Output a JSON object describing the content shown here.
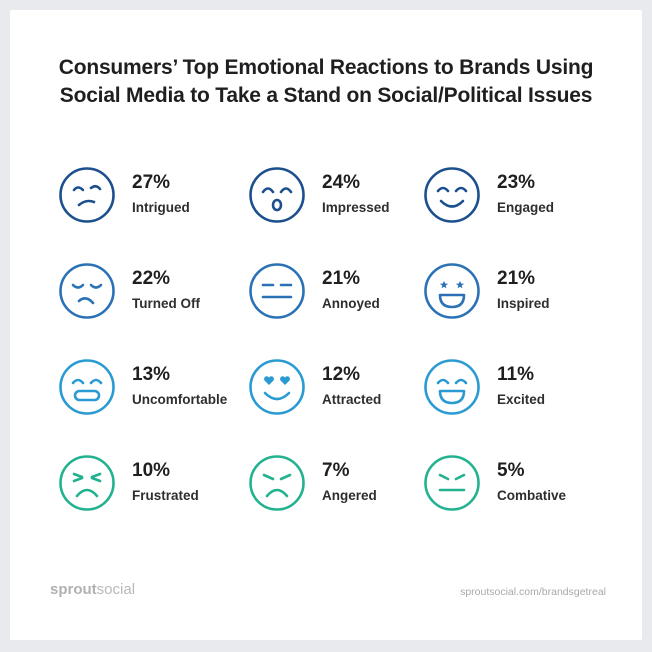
{
  "title": {
    "line1": "Consumers’ Top Emotional Reactions to Brands Using",
    "line2": "Social Media to Take a Stand on Social/Political Issues"
  },
  "colors": {
    "row1": "#1b4f8e",
    "row2": "#2a72b5",
    "row3": "#2a9bd2",
    "row4": "#22b28f"
  },
  "reactions": [
    {
      "percent": "27%",
      "label": "Intrigued",
      "icon": "intrigued-face-icon"
    },
    {
      "percent": "24%",
      "label": "Impressed",
      "icon": "impressed-face-icon"
    },
    {
      "percent": "23%",
      "label": "Engaged",
      "icon": "engaged-face-icon"
    },
    {
      "percent": "22%",
      "label": "Turned Off",
      "icon": "turned-off-face-icon"
    },
    {
      "percent": "21%",
      "label": "Annoyed",
      "icon": "annoyed-face-icon"
    },
    {
      "percent": "21%",
      "label": "Inspired",
      "icon": "inspired-face-icon"
    },
    {
      "percent": "13%",
      "label": "Uncomfortable",
      "icon": "uncomfortable-face-icon"
    },
    {
      "percent": "12%",
      "label": "Attracted",
      "icon": "attracted-face-icon"
    },
    {
      "percent": "11%",
      "label": "Excited",
      "icon": "excited-face-icon"
    },
    {
      "percent": "10%",
      "label": "Frustrated",
      "icon": "frustrated-face-icon"
    },
    {
      "percent": "7%",
      "label": "Angered",
      "icon": "angered-face-icon"
    },
    {
      "percent": "5%",
      "label": "Combative",
      "icon": "combative-face-icon"
    }
  ],
  "chart_data": {
    "type": "table",
    "title": "Consumers’ Top Emotional Reactions to Brands Using Social Media to Take a Stand on Social/Political Issues",
    "categories": [
      "Intrigued",
      "Impressed",
      "Engaged",
      "Turned Off",
      "Annoyed",
      "Inspired",
      "Uncomfortable",
      "Attracted",
      "Excited",
      "Frustrated",
      "Angered",
      "Combative"
    ],
    "values": [
      27,
      24,
      23,
      22,
      21,
      21,
      13,
      12,
      11,
      10,
      7,
      5
    ],
    "unit": "%"
  },
  "footer": {
    "logo_bold": "sprout",
    "logo_light": "social",
    "url": "sproutsocial.com/brandsgetreal"
  }
}
